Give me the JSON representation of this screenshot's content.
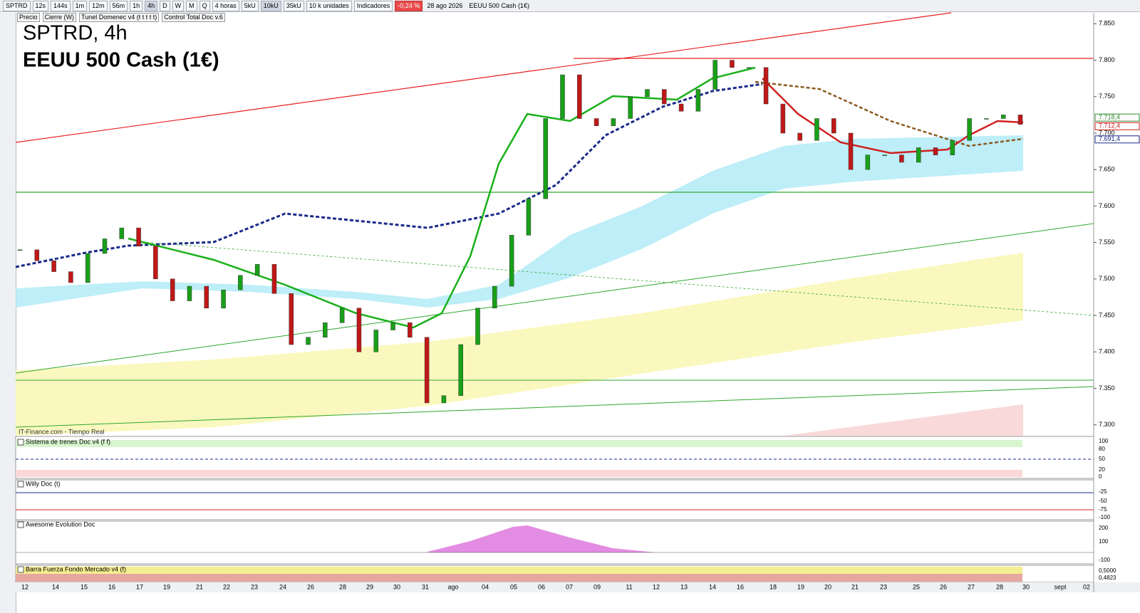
{
  "toolbar": {
    "symbol": "SPTRD",
    "intervals": [
      "12s",
      "144s",
      "1m",
      "12m",
      "56m",
      "1h",
      "4h",
      "D",
      "W",
      "M",
      "Q"
    ],
    "period": "4 horas",
    "units": [
      "5kU",
      "10kU",
      "35kU"
    ],
    "unit_select": "10 k unidades",
    "indicators": "Indicadores",
    "change": "-0,24 %",
    "date": "28 ago 2026",
    "instrument": "EEUU 500 Cash (1€)"
  },
  "legend": [
    "Precio",
    "Cierre (W)",
    "Tunel Domenec v4 (t t t t t)",
    "Control Total Doc v.6"
  ],
  "title": {
    "line1": "SPTRD, 4h",
    "line2": "EEUU 500 Cash (1€)"
  },
  "source": "IT-Finance.com - Tiempo Real",
  "price_axis": {
    "ylim": [
      7.285,
      7.865
    ],
    "ticks": [
      {
        "value": 7.85,
        "label": "7.850"
      },
      {
        "value": 7.8,
        "label": "7.800"
      },
      {
        "value": 7.75,
        "label": "7.750"
      },
      {
        "value": 7.7,
        "label": "7.700"
      },
      {
        "value": 7.65,
        "label": "7.650"
      },
      {
        "value": 7.6,
        "label": "7.600"
      },
      {
        "value": 7.55,
        "label": "7.550"
      },
      {
        "value": 7.5,
        "label": "7.500"
      },
      {
        "value": 7.45,
        "label": "7.450"
      },
      {
        "value": 7.4,
        "label": "7.400"
      },
      {
        "value": 7.35,
        "label": "7.350"
      },
      {
        "value": 7.3,
        "label": "7.300"
      }
    ],
    "markers": [
      {
        "value": 7.7184,
        "label": "7.718,4",
        "color": "#2e8b2e"
      },
      {
        "value": 7.7124,
        "label": "7.712,4",
        "color": "#d02020"
      },
      {
        "value": 7.6914,
        "label": "7.691,4",
        "color": "#1a2a8a"
      }
    ]
  },
  "closes": [
    7.54,
    7.525,
    7.51,
    7.495,
    7.535,
    7.555,
    7.57,
    7.545,
    7.5,
    7.47,
    7.49,
    7.46,
    7.485,
    7.505,
    7.52,
    7.48,
    7.41,
    7.42,
    7.44,
    7.46,
    7.4,
    7.43,
    7.44,
    7.42,
    7.33,
    7.34,
    7.41,
    7.46,
    7.49,
    7.56,
    7.61,
    7.72,
    7.78,
    7.72,
    7.71,
    7.72,
    7.75,
    7.76,
    7.74,
    7.73,
    7.76,
    7.8,
    7.79,
    7.79,
    7.74,
    7.7,
    7.69,
    7.72,
    7.7,
    7.65,
    7.67,
    7.67,
    7.66,
    7.68,
    7.67,
    7.69,
    7.72,
    7.72,
    7.725,
    7.712
  ],
  "panels": [
    {
      "title": "Sistema de trenes Doc v4 (f f)",
      "labels": [
        "100",
        "80",
        "50",
        "20",
        "0"
      ]
    },
    {
      "title": "Willy Doc (t)",
      "labels": [
        "-25",
        "-50",
        "-75",
        "-100"
      ]
    },
    {
      "title": "Awesome Evolution Doc",
      "labels": [
        "200",
        "100",
        "-100"
      ]
    },
    {
      "title": "Barra Fuerza Fondo Mercado v4 (f)",
      "labels": [
        "0,5000",
        "0,4823"
      ]
    }
  ],
  "dates": [
    "12",
    "14",
    "15",
    "16",
    "17",
    "19",
    "21",
    "22",
    "23",
    "24",
    "26",
    "28",
    "29",
    "30",
    "31",
    "ago",
    "04",
    "05",
    "06",
    "07",
    "09",
    "11",
    "12",
    "13",
    "14",
    "16",
    "18",
    "19",
    "20",
    "21",
    "23",
    "25",
    "26",
    "27",
    "28",
    "30",
    "sept",
    "02"
  ]
}
